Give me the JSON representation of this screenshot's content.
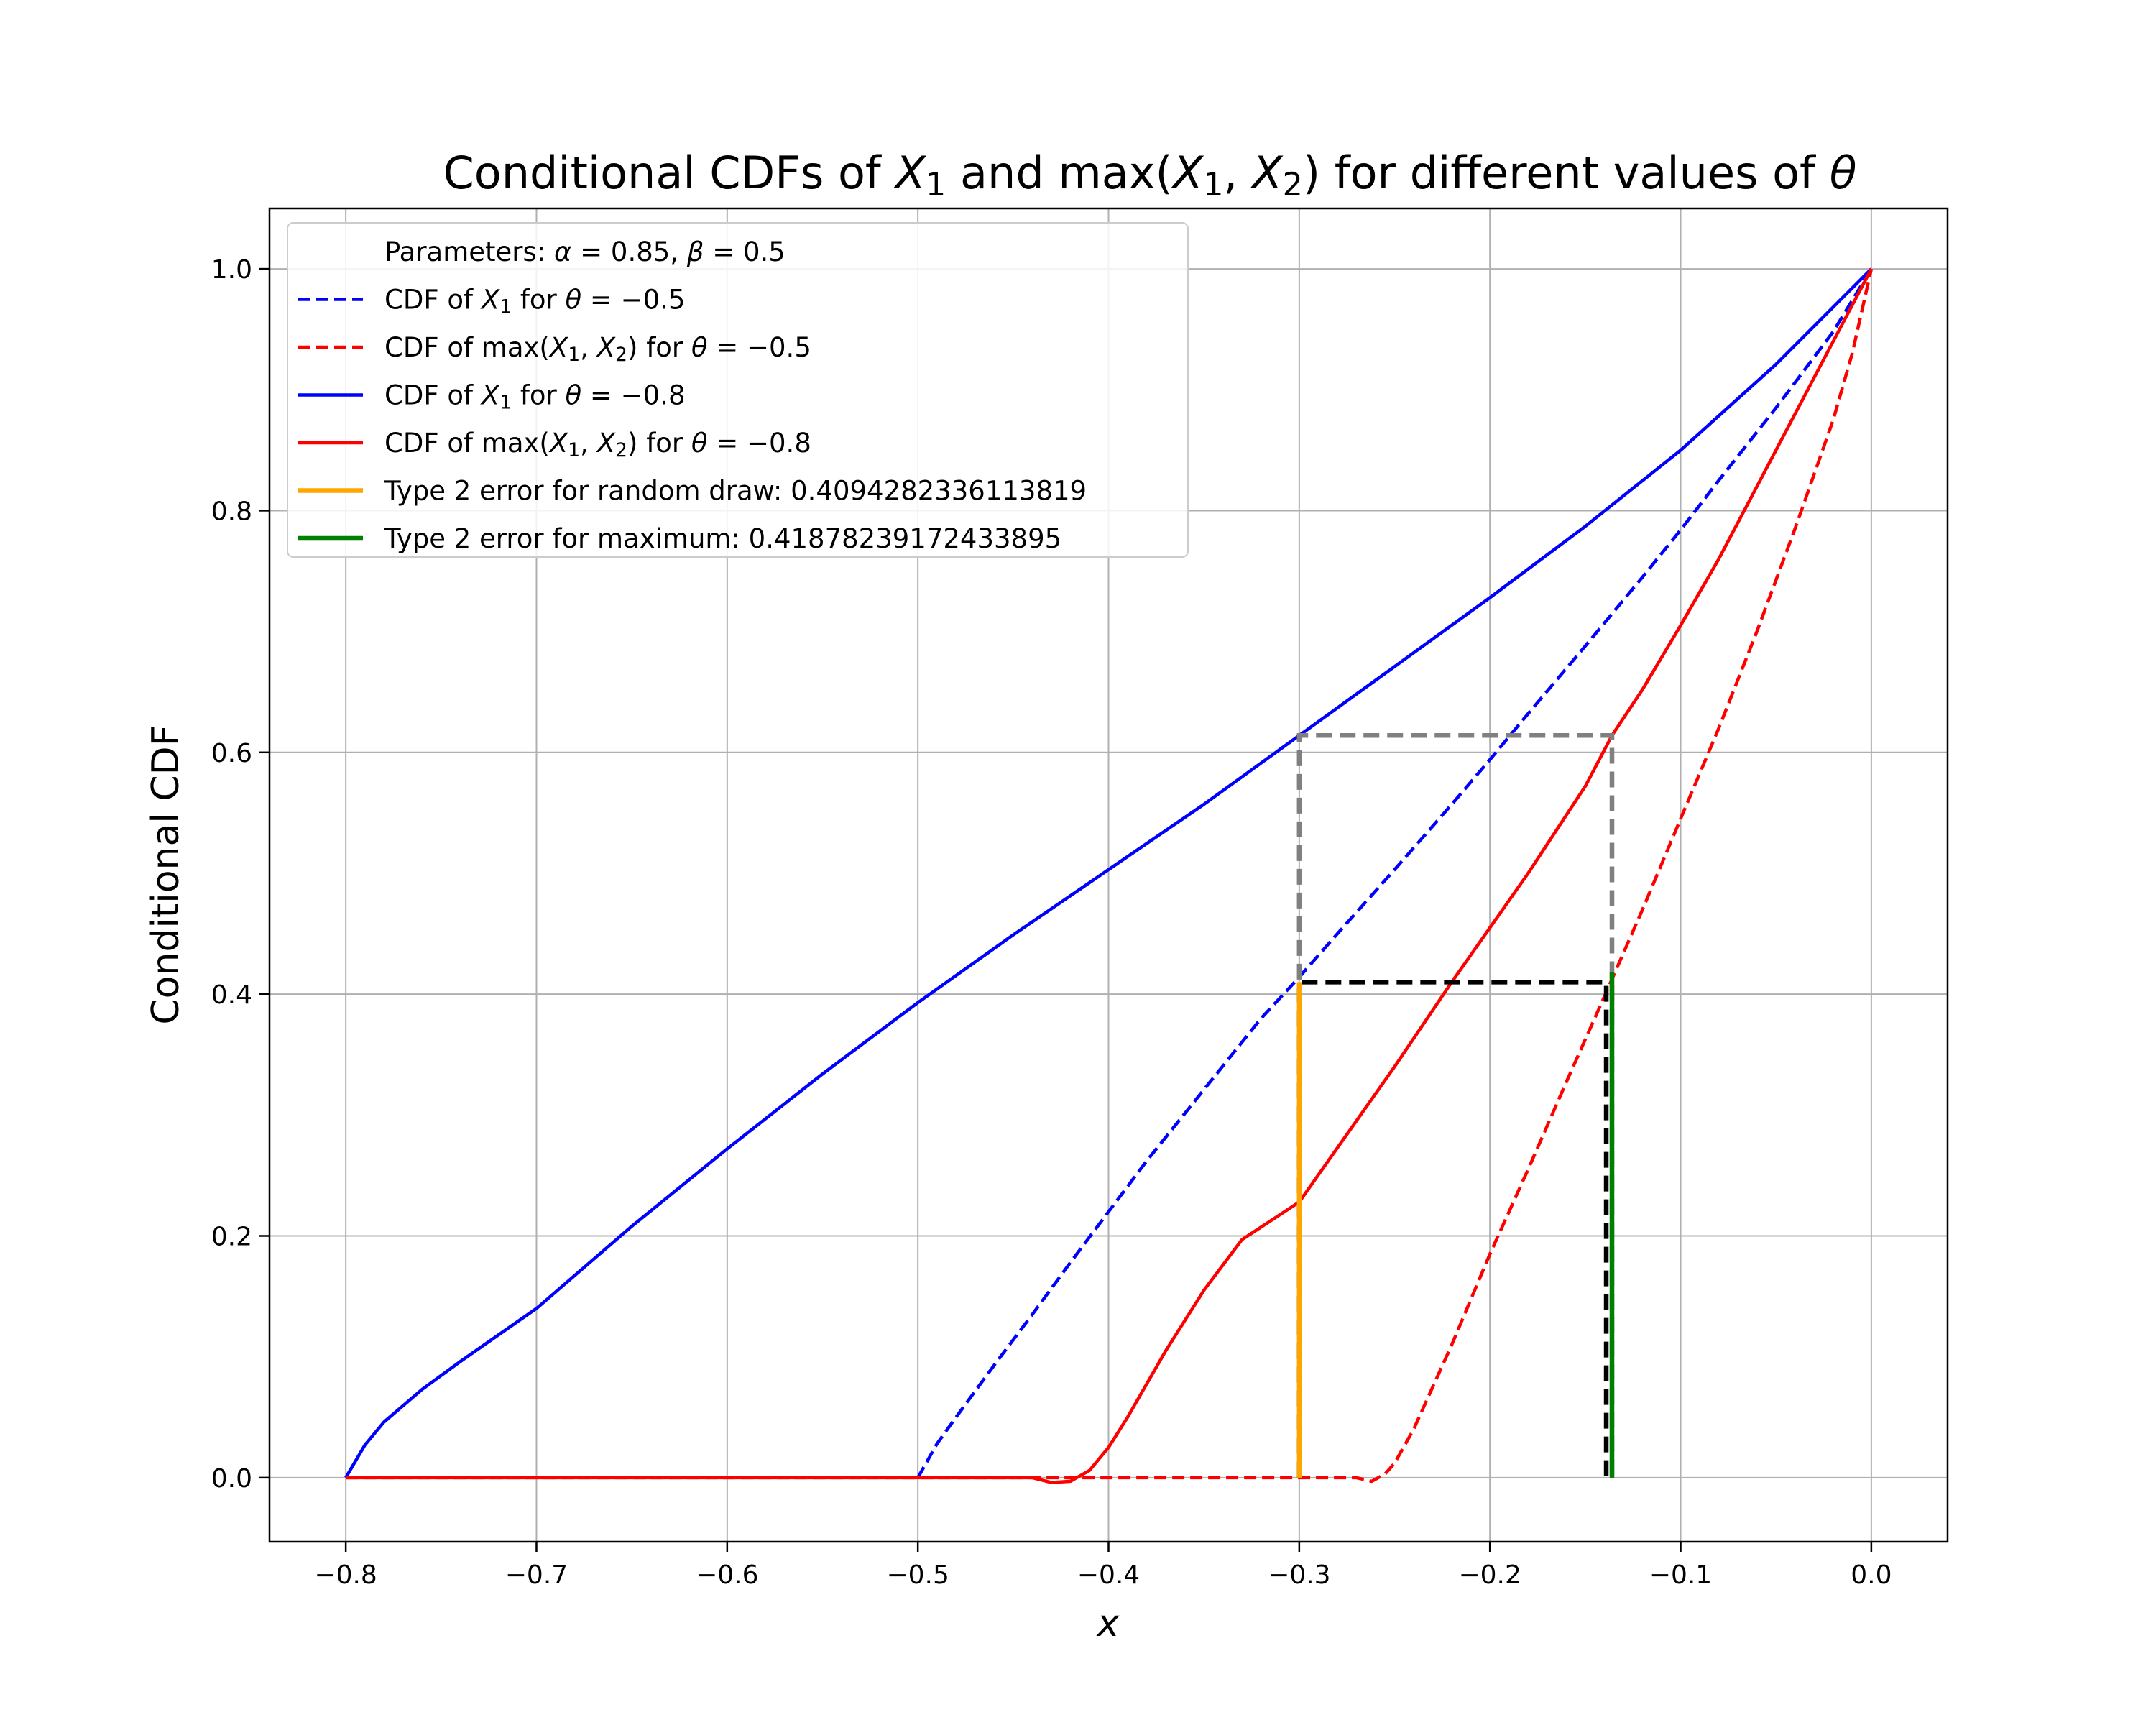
{
  "chart_data": {
    "type": "line",
    "title_parts": [
      "Conditional CDFs of ",
      "X",
      "1",
      " and max(",
      "X",
      "1",
      ", ",
      "X",
      "2",
      ") for different values of ",
      "θ"
    ],
    "xlabel": "x",
    "ylabel": "Conditional CDF",
    "xlim": [
      -0.84,
      0.04
    ],
    "ylim": [
      -0.053,
      1.05
    ],
    "xticks": [
      -0.8,
      -0.7,
      -0.6,
      -0.5,
      -0.4,
      -0.3,
      -0.2,
      -0.1,
      0.0
    ],
    "xtick_labels": [
      "−0.8",
      "−0.7",
      "−0.6",
      "−0.5",
      "−0.4",
      "−0.3",
      "−0.2",
      "−0.1",
      "0.0"
    ],
    "yticks": [
      0.0,
      0.2,
      0.4,
      0.6,
      0.8,
      1.0
    ],
    "ytick_labels": [
      "0.0",
      "0.2",
      "0.4",
      "0.6",
      "0.8",
      "1.0"
    ],
    "grid": true,
    "legend_position": "top-left",
    "legend": [
      {
        "parts": [
          "Parameters: ",
          "α",
          " = 0.85, ",
          "β",
          " = 0.5"
        ],
        "color": null,
        "dash": false
      },
      {
        "parts": [
          "CDF of ",
          "X",
          "1",
          " for ",
          "θ",
          " = −0.5"
        ],
        "color": "#0000ff",
        "dash": true
      },
      {
        "parts": [
          "CDF of max(",
          "X",
          "1",
          ", ",
          "X",
          "2",
          ") for ",
          "θ",
          " = −0.5"
        ],
        "color": "#ff0000",
        "dash": true
      },
      {
        "parts": [
          "CDF of ",
          "X",
          "1",
          " for ",
          "θ",
          " = −0.8"
        ],
        "color": "#0000ff",
        "dash": false
      },
      {
        "parts": [
          "CDF of max(",
          "X",
          "1",
          ", ",
          "X",
          "2",
          ") for ",
          "θ",
          " = −0.8"
        ],
        "color": "#ff0000",
        "dash": false
      },
      {
        "parts": [
          "Type 2 error for random draw: 0.4094282336113819"
        ],
        "color": "#ffa500",
        "dash": false
      },
      {
        "parts": [
          "Type 2 error for maximum: 0.41878239172433895"
        ],
        "color": "#008000",
        "dash": false
      }
    ],
    "series": [
      {
        "color": "#0000ff",
        "dash": true,
        "x": [
          -0.5,
          -0.49,
          -0.48,
          -0.46,
          -0.44,
          -0.42,
          -0.4,
          -0.38,
          -0.35,
          -0.32,
          -0.3,
          -0.28,
          -0.25,
          -0.22,
          -0.2,
          -0.18,
          -0.15,
          -0.12,
          -0.1,
          -0.08,
          -0.05,
          -0.02,
          0.0
        ],
        "y": [
          0.0,
          0.028,
          0.05,
          0.093,
          0.135,
          0.178,
          0.22,
          0.262,
          0.321,
          0.38,
          0.414,
          0.45,
          0.503,
          0.557,
          0.594,
          0.632,
          0.688,
          0.745,
          0.784,
          0.825,
          0.885,
          0.948,
          1.0
        ]
      },
      {
        "color": "#ff0000",
        "dash": true,
        "x": [
          -0.8,
          -0.3,
          -0.27,
          -0.262,
          -0.255,
          -0.25,
          -0.24,
          -0.22,
          -0.2,
          -0.18,
          -0.16,
          -0.14,
          -0.12,
          -0.1,
          -0.08,
          -0.06,
          -0.04,
          -0.02,
          -0.01,
          0.0
        ],
        "y": [
          0.0,
          0.0,
          0.0,
          -0.003,
          0.003,
          0.012,
          0.04,
          0.11,
          0.185,
          0.255,
          0.327,
          0.398,
          0.47,
          0.545,
          0.62,
          0.7,
          0.785,
          0.875,
          0.93,
          1.0
        ]
      },
      {
        "color": "#0000ff",
        "dash": false,
        "x": [
          -0.8,
          -0.79,
          -0.78,
          -0.76,
          -0.74,
          -0.72,
          -0.7,
          -0.65,
          -0.6,
          -0.55,
          -0.5,
          -0.45,
          -0.4,
          -0.35,
          -0.3,
          -0.25,
          -0.2,
          -0.15,
          -0.1,
          -0.05,
          0.0
        ],
        "y": [
          0.0,
          0.027,
          0.046,
          0.073,
          0.096,
          0.118,
          0.14,
          0.208,
          0.272,
          0.334,
          0.393,
          0.449,
          0.503,
          0.557,
          0.614,
          0.671,
          0.728,
          0.787,
          0.85,
          0.921,
          1.0
        ]
      },
      {
        "color": "#ff0000",
        "dash": false,
        "x": [
          -0.8,
          -0.44,
          -0.43,
          -0.42,
          -0.41,
          -0.4,
          -0.39,
          -0.37,
          -0.35,
          -0.33,
          -0.3,
          -0.25,
          -0.22,
          -0.2,
          -0.18,
          -0.15,
          -0.136,
          -0.12,
          -0.1,
          -0.08,
          -0.06,
          -0.04,
          -0.02,
          0.0
        ],
        "y": [
          0.0,
          0.0,
          -0.004,
          -0.003,
          0.006,
          0.025,
          0.05,
          0.105,
          0.155,
          0.197,
          0.228,
          0.34,
          0.41,
          0.455,
          0.5,
          0.572,
          0.614,
          0.652,
          0.705,
          0.76,
          0.82,
          0.88,
          0.94,
          1.0
        ]
      }
    ],
    "annotations": [
      {
        "type": "box",
        "color": "#808080",
        "dash": true,
        "x": [
          -0.3,
          -0.136
        ],
        "y": [
          0.0,
          0.614
        ]
      },
      {
        "type": "box",
        "color": "#000000",
        "dash": true,
        "x": [
          -0.3,
          -0.139
        ],
        "y": [
          0.0,
          0.41
        ]
      },
      {
        "type": "vline",
        "color": "#ffa500",
        "x": -0.3,
        "y": [
          0.0,
          0.41
        ]
      },
      {
        "type": "vline",
        "color": "#008000",
        "x": -0.136,
        "y": [
          0.0,
          0.418
        ]
      }
    ]
  }
}
